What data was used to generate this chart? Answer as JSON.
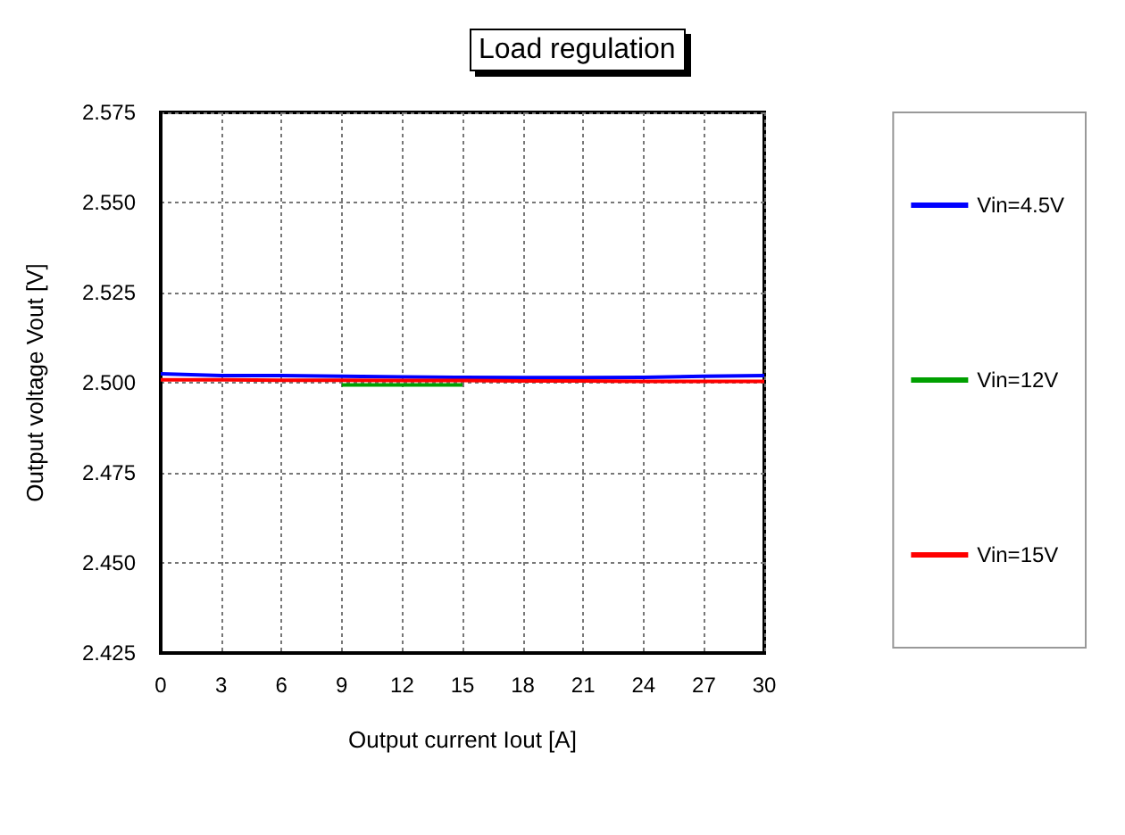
{
  "chart_data": {
    "type": "line",
    "title": "Load regulation",
    "xlabel": "Output current Iout [A]",
    "ylabel": "Output voltage Vout [V]",
    "x": [
      0,
      3,
      6,
      9,
      12,
      15,
      18,
      21,
      24,
      27,
      30
    ],
    "series": [
      {
        "name": "Vin=4.5V",
        "color": "#0000ff",
        "values": [
          2.5025,
          2.502,
          2.502,
          2.5018,
          2.5016,
          2.5015,
          2.5014,
          2.5014,
          2.5015,
          2.5018,
          2.502
        ]
      },
      {
        "name": "Vin=12V",
        "color": "#00a000",
        "values": [
          null,
          null,
          null,
          2.4994,
          2.4994,
          2.4994,
          null,
          null,
          null,
          null,
          null
        ]
      },
      {
        "name": "Vin=15V",
        "color": "#ff0000",
        "values": [
          2.5008,
          2.5008,
          2.5007,
          2.5007,
          2.5006,
          2.5006,
          2.5005,
          2.5005,
          2.5004,
          2.5004,
          2.5004
        ]
      }
    ],
    "xlim": [
      0,
      30
    ],
    "xticks": [
      0,
      3,
      6,
      9,
      12,
      15,
      18,
      21,
      24,
      27,
      30
    ],
    "ylim": [
      2.425,
      2.575
    ],
    "yticks": [
      2.425,
      {
        "value": 2.45,
        "label": "2.450"
      },
      2.475,
      {
        "value": 2.5,
        "label": "2.500"
      },
      2.525,
      {
        "value": 2.55,
        "label": "2.550"
      },
      2.575
    ],
    "grid": true,
    "legend": "right",
    "marker": "none",
    "line_style": "solid"
  }
}
